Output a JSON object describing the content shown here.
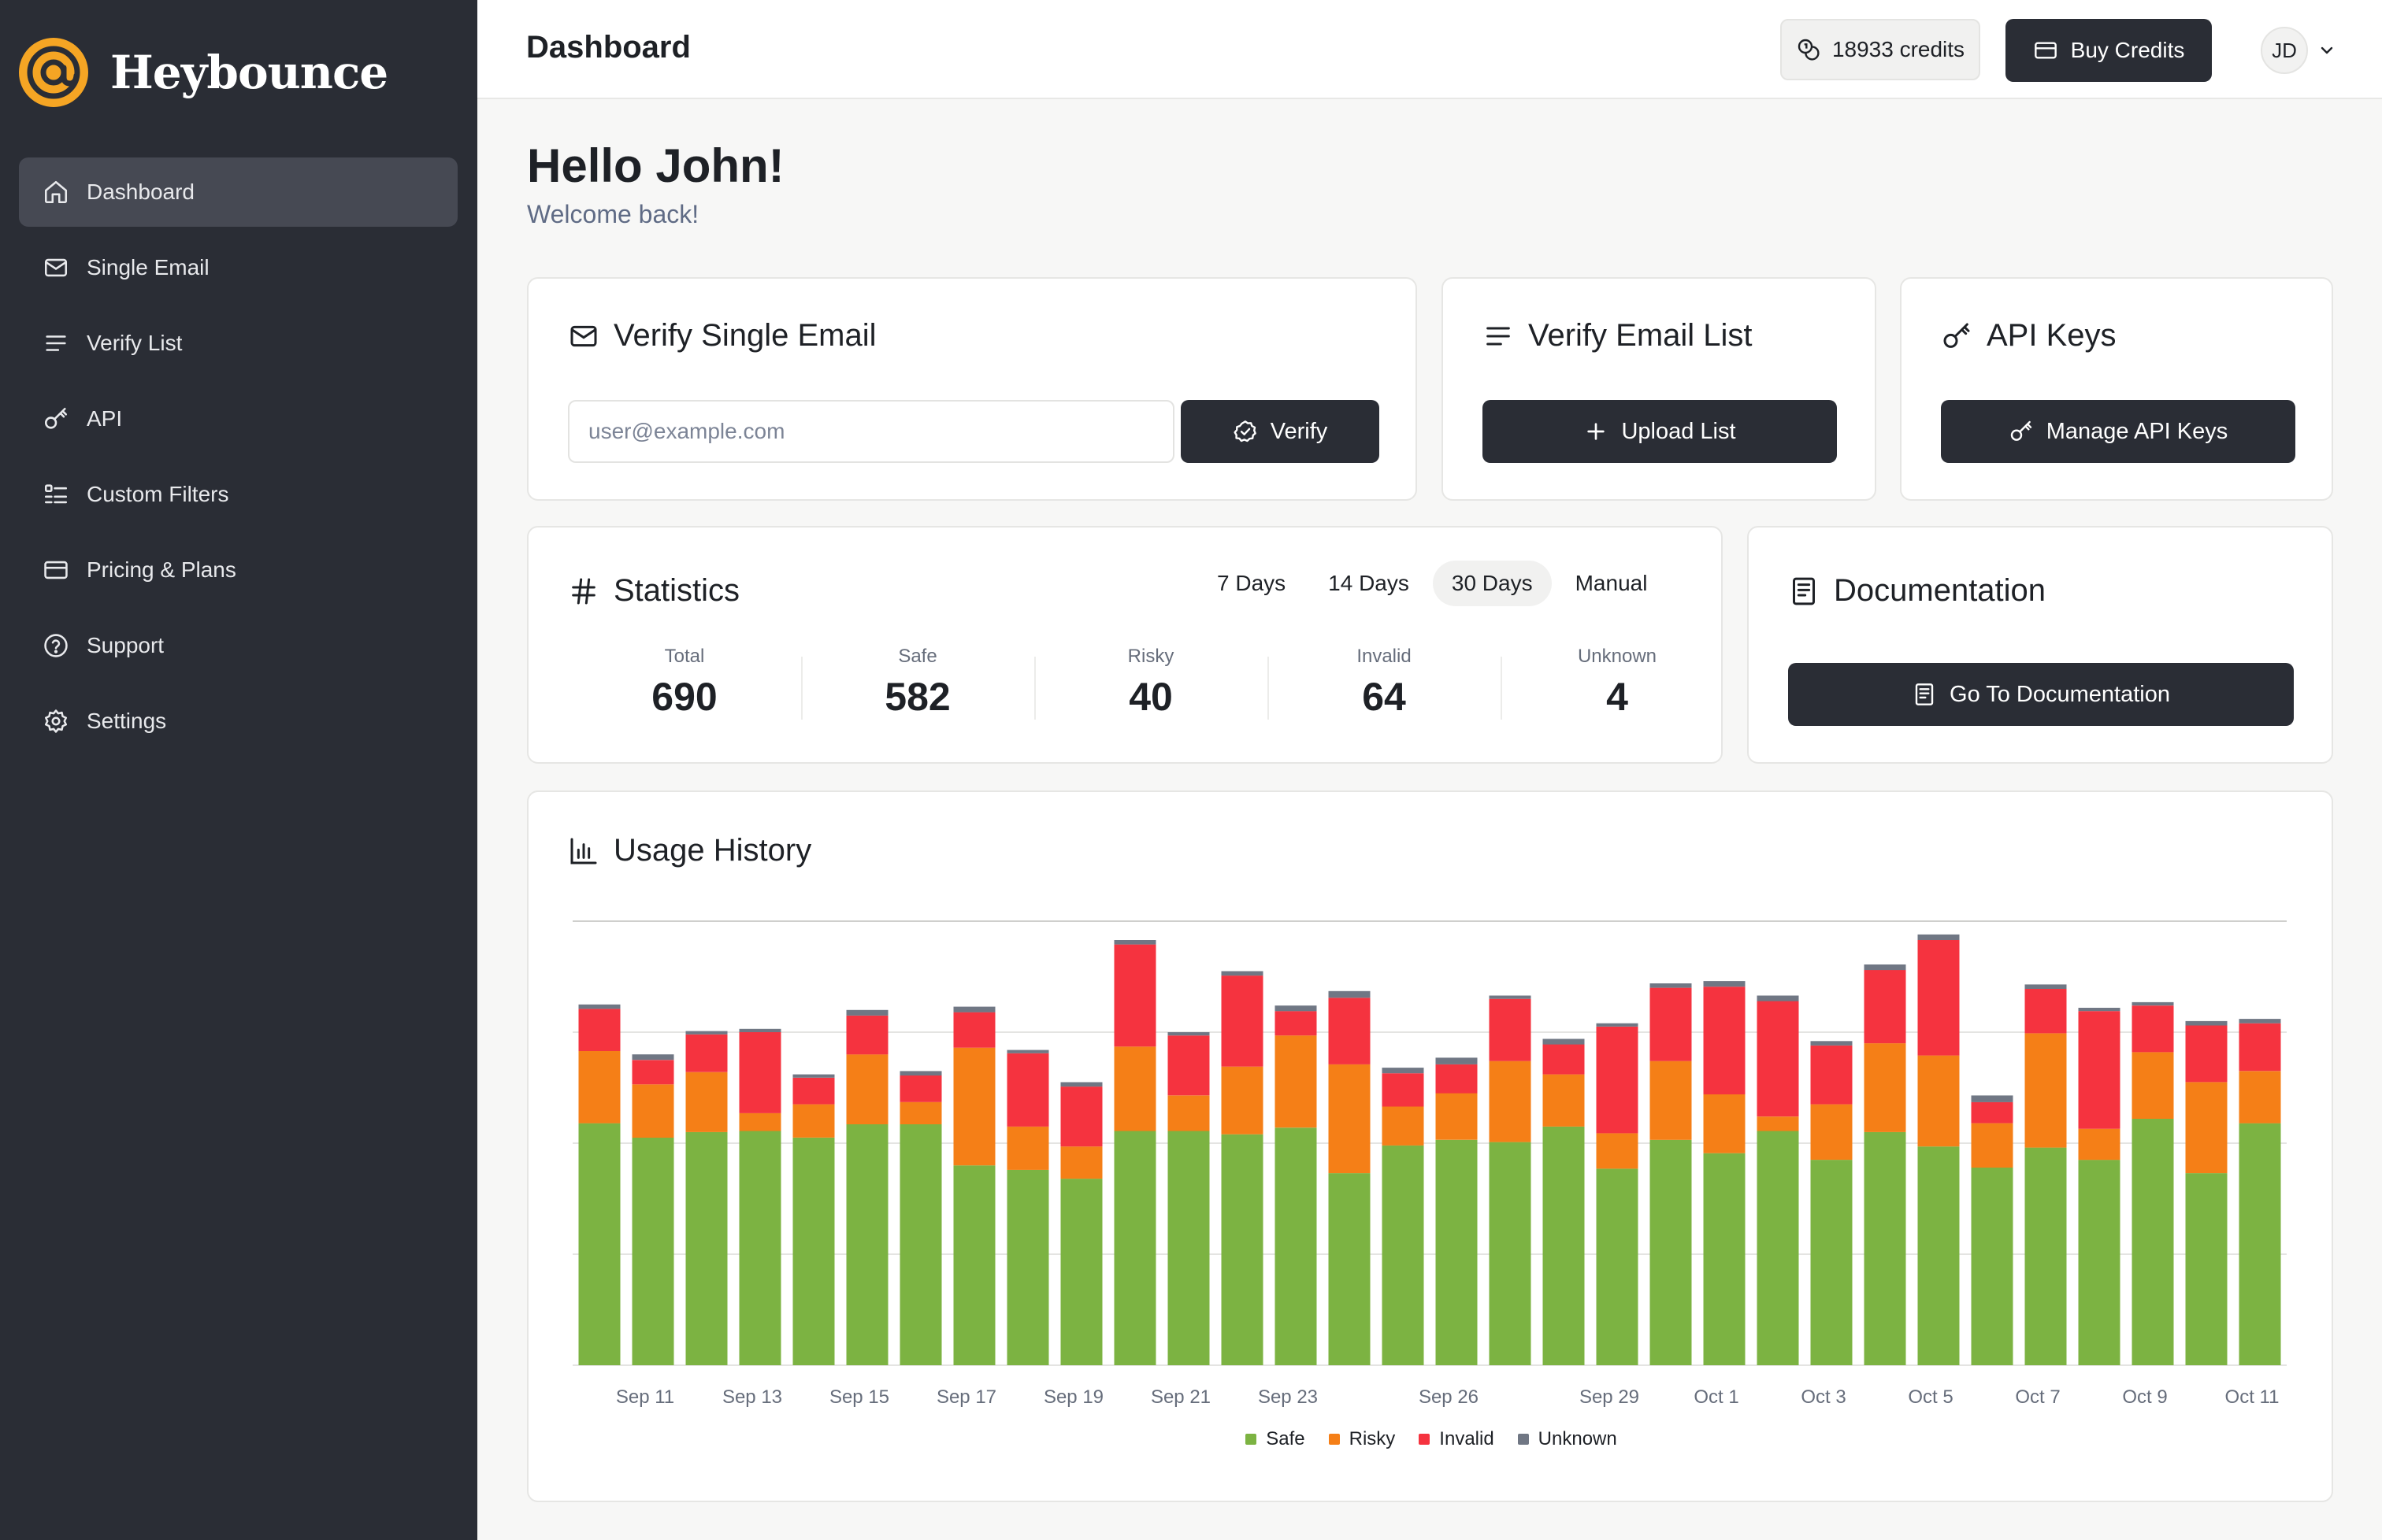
{
  "brand": {
    "name": "Heybounce",
    "accent": "#f5a524"
  },
  "sidebar": {
    "items": [
      {
        "label": "Dashboard",
        "icon": "home-icon",
        "active": true
      },
      {
        "label": "Single Email",
        "icon": "mail-icon"
      },
      {
        "label": "Verify List",
        "icon": "list-icon"
      },
      {
        "label": "API",
        "icon": "key-icon"
      },
      {
        "label": "Custom Filters",
        "icon": "filter-list-icon"
      },
      {
        "label": "Pricing & Plans",
        "icon": "credit-card-icon"
      },
      {
        "label": "Support",
        "icon": "help-circle-icon"
      },
      {
        "label": "Settings",
        "icon": "gear-icon"
      }
    ]
  },
  "header": {
    "title": "Dashboard",
    "credits": "18933 credits",
    "buy_label": "Buy Credits",
    "user_initials": "JD"
  },
  "greeting": {
    "title": "Hello John!",
    "subtitle": "Welcome back!"
  },
  "verify_single": {
    "title": "Verify Single Email",
    "placeholder": "user@example.com",
    "button": "Verify"
  },
  "verify_list": {
    "title": "Verify Email List",
    "button": "Upload List"
  },
  "api_keys": {
    "title": "API Keys",
    "button": "Manage API Keys"
  },
  "statistics": {
    "title": "Statistics",
    "ranges": [
      "7 Days",
      "14 Days",
      "30 Days",
      "Manual"
    ],
    "active_range": "30 Days",
    "items": [
      {
        "label": "Total",
        "value": "690"
      },
      {
        "label": "Safe",
        "value": "582"
      },
      {
        "label": "Risky",
        "value": "40"
      },
      {
        "label": "Invalid",
        "value": "64"
      },
      {
        "label": "Unknown",
        "value": "4"
      }
    ]
  },
  "documentation": {
    "title": "Documentation",
    "button": "Go To Documentation"
  },
  "usage": {
    "title": "Usage History"
  },
  "chart_data": {
    "type": "bar",
    "stacked": true,
    "ylim": [
      0,
      400
    ],
    "grid": true,
    "legend_position": "bottom-center",
    "x_tick_labels": [
      "Sep 11",
      "Sep 13",
      "Sep 15",
      "Sep 17",
      "Sep 19",
      "Sep 21",
      "Sep 23",
      "Sep 26",
      "Sep 29",
      "Oct 1",
      "Oct 3",
      "Oct 5",
      "Oct 7",
      "Oct 9",
      "Oct 11"
    ],
    "series": [
      {
        "name": "Safe",
        "color": "#7cb342",
        "values": [
          218,
          205,
          210,
          211,
          205,
          217,
          217,
          180,
          176,
          168,
          211,
          211,
          208,
          214,
          173,
          198,
          203,
          201,
          215,
          177,
          203,
          191,
          211,
          185,
          210,
          197,
          178,
          196,
          185,
          222,
          173,
          218
        ]
      },
      {
        "name": "Risky",
        "color": "#f57f17",
        "values": [
          65,
          48,
          54,
          16,
          30,
          63,
          20,
          106,
          39,
          29,
          76,
          32,
          61,
          83,
          98,
          35,
          42,
          73,
          47,
          32,
          71,
          53,
          13,
          50,
          80,
          82,
          40,
          103,
          28,
          60,
          82,
          47
        ]
      },
      {
        "name": "Invalid",
        "color": "#f5333f",
        "values": [
          38,
          22,
          34,
          73,
          24,
          35,
          24,
          32,
          66,
          54,
          92,
          54,
          82,
          22,
          60,
          30,
          26,
          56,
          27,
          96,
          66,
          97,
          104,
          53,
          66,
          104,
          19,
          40,
          106,
          42,
          51,
          43
        ]
      },
      {
        "name": "Unknown",
        "color": "#707784",
        "values": [
          4,
          5,
          3,
          3,
          3,
          5,
          4,
          5,
          3,
          4,
          4,
          3,
          4,
          5,
          6,
          5,
          6,
          3,
          5,
          3,
          4,
          5,
          5,
          4,
          5,
          5,
          6,
          4,
          3,
          3,
          4,
          4
        ]
      }
    ]
  }
}
